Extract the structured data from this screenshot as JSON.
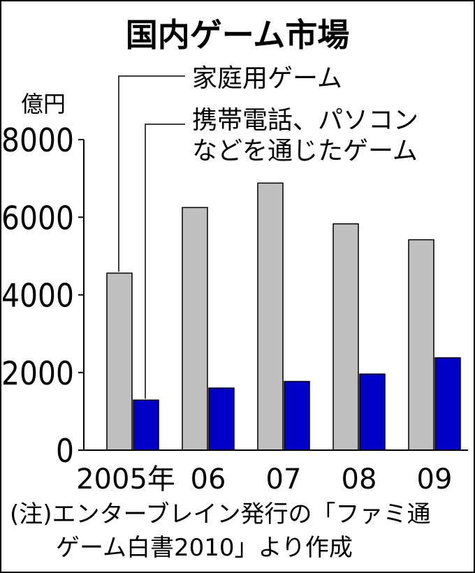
{
  "chart_data": {
    "type": "bar",
    "title": "国内ゲーム市場",
    "ylabel": "億円",
    "ylim": [
      0,
      8000
    ],
    "yticks": [
      "0",
      "2000",
      "4000",
      "6000",
      "8000"
    ],
    "categories": [
      "2005年",
      "06",
      "07",
      "08",
      "09"
    ],
    "series": [
      {
        "name": "家庭用ゲーム",
        "values": [
          4560,
          6250,
          6880,
          5830,
          5420
        ],
        "color": "#c0c0c0"
      },
      {
        "name": "携帯電話、パソコンなどを通じたゲーム",
        "values": [
          1290,
          1600,
          1770,
          1960,
          2380
        ],
        "color": "#0000c8"
      }
    ],
    "legend_lines": [
      [
        "家庭用ゲーム"
      ],
      [
        "携帯電話、パソコン",
        "などを通じたゲーム"
      ]
    ],
    "note_lines": [
      "(注)エンターブレイン発行の「ファミ通",
      "ゲーム白書2010」より作成"
    ],
    "grid": false,
    "legend": "top (callout labels)"
  }
}
